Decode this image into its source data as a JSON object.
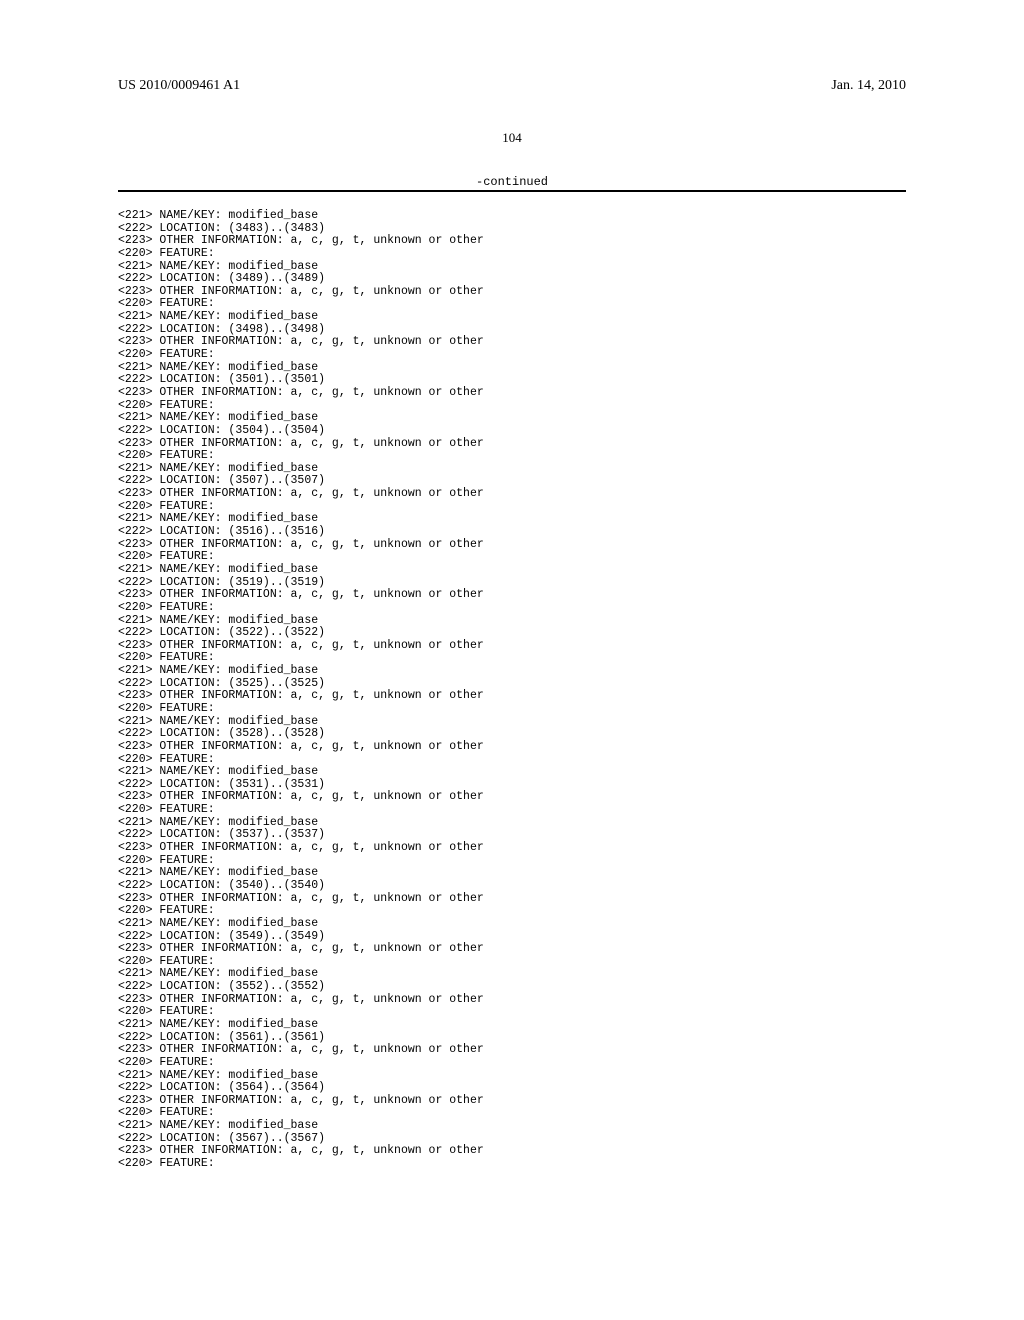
{
  "header": {
    "left": "US 2010/0009461 A1",
    "right": "Jan. 14, 2010"
  },
  "page_number": "104",
  "continued_label": "-continued",
  "typography": {
    "header_font": "Times New Roman",
    "header_fontsize": 14,
    "body_font": "Courier New",
    "body_fontsize": 11.5,
    "line_height": 1.1
  },
  "colors": {
    "background": "#ffffff",
    "text": "#000000",
    "divider": "#000000"
  },
  "locations": [
    "(3483)..(3483)",
    "(3489)..(3489)",
    "(3498)..(3498)",
    "(3501)..(3501)",
    "(3504)..(3504)",
    "(3507)..(3507)",
    "(3516)..(3516)",
    "(3519)..(3519)",
    "(3522)..(3522)",
    "(3525)..(3525)",
    "(3528)..(3528)",
    "(3531)..(3531)",
    "(3537)..(3537)",
    "(3540)..(3540)",
    "(3549)..(3549)",
    "(3552)..(3552)",
    "(3561)..(3561)",
    "(3564)..(3564)",
    "(3567)..(3567)"
  ],
  "labels": {
    "name_key": "<221> NAME/KEY: modified_base",
    "location_prefix": "<222> LOCATION: ",
    "other_info": "<223> OTHER INFORMATION: a, c, g, t, unknown or other",
    "feature": "<220> FEATURE:"
  }
}
